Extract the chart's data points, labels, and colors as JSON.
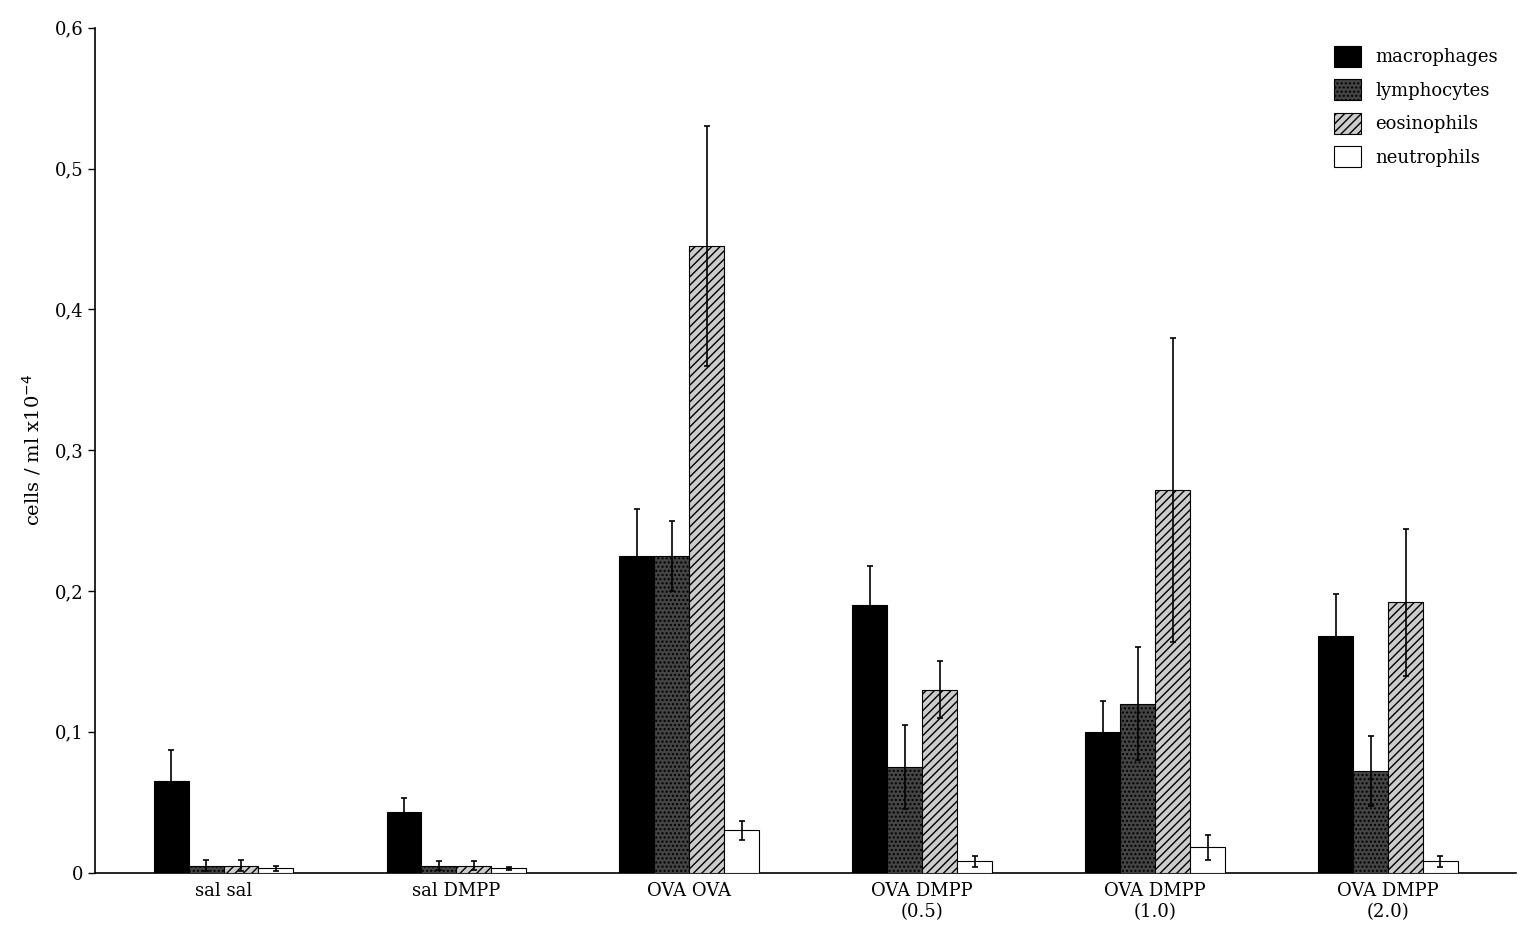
{
  "categories": [
    "sal sal",
    "sal DMPP",
    "OVA OVA",
    "OVA DMPP\n(0.5)",
    "OVA DMPP\n(1.0)",
    "OVA DMPP\n(2.0)"
  ],
  "series": {
    "macrophages": [
      0.065,
      0.043,
      0.225,
      0.19,
      0.1,
      0.168
    ],
    "lymphocytes": [
      0.005,
      0.005,
      0.225,
      0.075,
      0.12,
      0.072
    ],
    "eosinophils": [
      0.005,
      0.005,
      0.445,
      0.13,
      0.272,
      0.192
    ],
    "neutrophils": [
      0.003,
      0.003,
      0.03,
      0.008,
      0.018,
      0.008
    ]
  },
  "errors": {
    "macrophages": [
      0.022,
      0.01,
      0.033,
      0.028,
      0.022,
      0.03
    ],
    "lymphocytes": [
      0.004,
      0.003,
      0.025,
      0.03,
      0.04,
      0.025
    ],
    "eosinophils": [
      0.004,
      0.003,
      0.085,
      0.02,
      0.108,
      0.052
    ],
    "neutrophils": [
      0.002,
      0.001,
      0.007,
      0.004,
      0.009,
      0.004
    ]
  },
  "bar_styles": {
    "macrophages": {
      "color": "#000000",
      "hatch": ""
    },
    "lymphocytes": {
      "color": "#444444",
      "hatch": "...."
    },
    "eosinophils": {
      "color": "#cccccc",
      "hatch": "////"
    },
    "neutrophils": {
      "color": "#ffffff",
      "hatch": ""
    }
  },
  "ylabel": "cells / ml x10$^{-4}$",
  "ylim": [
    0,
    0.6
  ],
  "yticks": [
    0.0,
    0.1,
    0.2,
    0.3,
    0.4,
    0.5,
    0.6
  ],
  "ytick_labels": [
    "0",
    "0,1",
    "0,2",
    "0,3",
    "0,4",
    "0,5",
    "0,6"
  ],
  "legend_labels": [
    "macrophages",
    "lymphocytes",
    "eosinophils",
    "neutrophils"
  ],
  "bar_width": 0.15,
  "background_color": "#ffffff",
  "font_size": 13,
  "legend_font_size": 13
}
